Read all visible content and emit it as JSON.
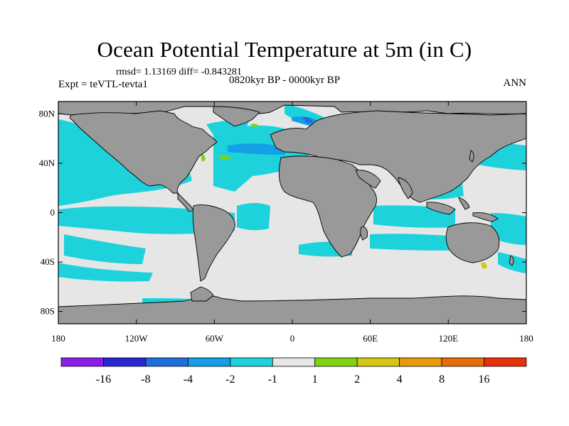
{
  "title": "Ocean Potential Temperature at 5m (in C)",
  "stats": "rmsd= 1.13169 diff= -0.843281",
  "experiment": "Expt = teVTL-tevta1",
  "period": "0820kyr BP - 0000kyr BP",
  "season": "ANN",
  "axes": {
    "lat_ticks": [
      {
        "value": 80,
        "label": "80N"
      },
      {
        "value": 40,
        "label": "40N"
      },
      {
        "value": 0,
        "label": "0"
      },
      {
        "value": -40,
        "label": "40S"
      },
      {
        "value": -80,
        "label": "80S"
      }
    ],
    "lon_ticks": [
      {
        "value": -180,
        "label": "180"
      },
      {
        "value": -120,
        "label": "120W"
      },
      {
        "value": -60,
        "label": "60W"
      },
      {
        "value": 0,
        "label": "0"
      },
      {
        "value": 60,
        "label": "60E"
      },
      {
        "value": 120,
        "label": "120E"
      },
      {
        "value": 180,
        "label": "180"
      }
    ],
    "lat_range": [
      -90,
      90
    ],
    "lon_range": [
      -180,
      180
    ]
  },
  "colorbar": {
    "colors": [
      "#8a1ee6",
      "#2828d2",
      "#1e6edc",
      "#14a0e6",
      "#1ed2dc",
      "#e6e6e6",
      "#82d214",
      "#d2c814",
      "#e69b0a",
      "#e66e0a",
      "#e6320a"
    ],
    "labels": [
      "-16",
      "-8",
      "-4",
      "-2",
      "-1",
      "1",
      "2",
      "4",
      "8",
      "16"
    ]
  },
  "colors": {
    "land": "#999999",
    "neutral": "#e6e6e6",
    "cool": "#1ed2dc",
    "mid_cool": "#14a0e6",
    "blue": "#1e6edc",
    "warm": "#82d214",
    "yellow": "#d2c814"
  }
}
